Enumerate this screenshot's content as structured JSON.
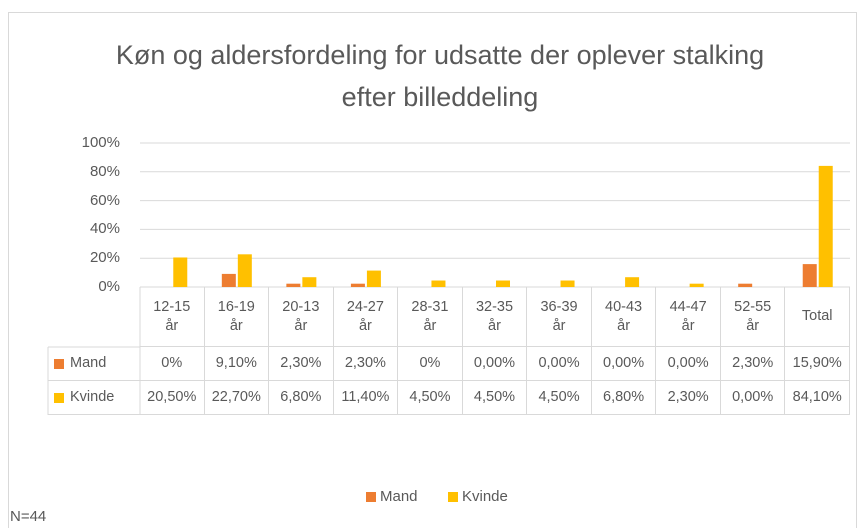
{
  "chart_data": {
    "type": "bar",
    "title": "Køn og aldersfordeling for udsatte der oplever stalking efter billeddeling",
    "categories": [
      "12-15 år",
      "16-19 år",
      "20-13 år",
      "24-27 år",
      "28-31 år",
      "32-35 år",
      "36-39 år",
      "40-43 år",
      "44-47 år",
      "52-55 år",
      "Total"
    ],
    "series": [
      {
        "name": "Mand",
        "color": "#ed7d31",
        "values": [
          0,
          9.1,
          2.3,
          2.3,
          0,
          0,
          0,
          0,
          0,
          2.3,
          15.9
        ],
        "value_labels": [
          "0%",
          "9,10%",
          "2,30%",
          "2,30%",
          "0%",
          "0,00%",
          "0,00%",
          "0,00%",
          "0,00%",
          "2,30%",
          "15,90%"
        ]
      },
      {
        "name": "Kvinde",
        "color": "#ffc000",
        "values": [
          20.5,
          22.7,
          6.8,
          11.4,
          4.5,
          4.5,
          4.5,
          6.8,
          2.3,
          0,
          84.1
        ],
        "value_labels": [
          "20,50%",
          "22,70%",
          "6,80%",
          "11,40%",
          "4,50%",
          "4,50%",
          "4,50%",
          "6,80%",
          "2,30%",
          "0,00%",
          "84,10%"
        ]
      }
    ],
    "ylim": [
      0,
      100
    ],
    "yticks": [
      {
        "value": 0,
        "label": "0%"
      },
      {
        "value": 20,
        "label": "20%"
      },
      {
        "value": 40,
        "label": "40%"
      },
      {
        "value": 60,
        "label": "60%"
      },
      {
        "value": 80,
        "label": "80%"
      },
      {
        "value": 100,
        "label": "100%"
      }
    ],
    "grid": true,
    "legend": "bottom",
    "annotation": "N=44"
  }
}
